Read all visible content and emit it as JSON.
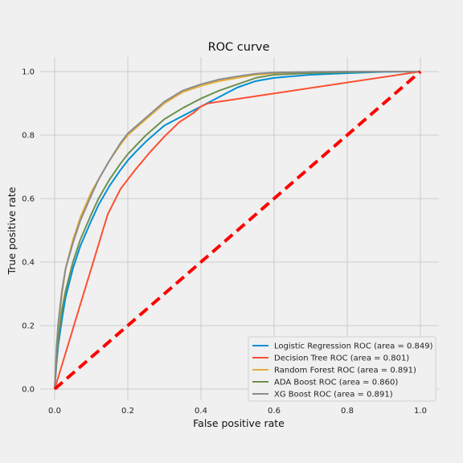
{
  "chart_data": {
    "type": "line",
    "title": "ROC curve",
    "xlabel": "False positive rate",
    "ylabel": "True positive rate",
    "xlim": [
      0.0,
      1.0
    ],
    "ylim": [
      0.0,
      1.0
    ],
    "xticks": [
      "0.0",
      "0.2",
      "0.4",
      "0.6",
      "0.8",
      "1.0"
    ],
    "yticks": [
      "0.0",
      "0.2",
      "0.4",
      "0.6",
      "0.8",
      "1.0"
    ],
    "grid": true,
    "legend_position": "lower-right",
    "series": [
      {
        "name": "Logistic Regression ROC (area = 0.849)",
        "color": "#008fd5",
        "x": [
          0,
          0.005,
          0.01,
          0.02,
          0.03,
          0.05,
          0.07,
          0.1,
          0.12,
          0.15,
          0.18,
          0.2,
          0.22,
          0.25,
          0.28,
          0.3,
          0.35,
          0.4,
          0.45,
          0.5,
          0.55,
          0.6,
          0.65,
          0.7,
          0.8,
          0.9,
          1.0
        ],
        "y": [
          0,
          0.08,
          0.14,
          0.22,
          0.29,
          0.38,
          0.45,
          0.53,
          0.58,
          0.64,
          0.69,
          0.72,
          0.745,
          0.78,
          0.81,
          0.83,
          0.86,
          0.89,
          0.92,
          0.95,
          0.97,
          0.98,
          0.985,
          0.99,
          0.995,
          0.999,
          1.0
        ]
      },
      {
        "name": "Decision Tree ROC (area = 0.801)",
        "color": "#fc4f30",
        "x": [
          0,
          0.145,
          0.18,
          0.22,
          0.26,
          0.3,
          0.34,
          0.38,
          0.4,
          0.42,
          1.0
        ],
        "y": [
          0,
          0.55,
          0.63,
          0.69,
          0.745,
          0.795,
          0.84,
          0.87,
          0.89,
          0.9,
          1.0
        ]
      },
      {
        "name": "Random Forest ROC (area = 0.891)",
        "color": "#e5ae38",
        "x": [
          0,
          0.005,
          0.01,
          0.02,
          0.03,
          0.05,
          0.07,
          0.1,
          0.12,
          0.15,
          0.18,
          0.2,
          0.25,
          0.3,
          0.35,
          0.4,
          0.45,
          0.5,
          0.55,
          0.6,
          0.7,
          0.8,
          0.9,
          1.0
        ],
        "y": [
          0,
          0.12,
          0.2,
          0.3,
          0.38,
          0.47,
          0.54,
          0.62,
          0.66,
          0.72,
          0.77,
          0.8,
          0.85,
          0.9,
          0.935,
          0.955,
          0.97,
          0.98,
          0.99,
          0.995,
          0.998,
          0.999,
          1.0,
          1.0
        ]
      },
      {
        "name": "ADA Boost ROC (area = 0.860)",
        "color": "#6d904f",
        "x": [
          0,
          0.005,
          0.01,
          0.02,
          0.03,
          0.05,
          0.07,
          0.1,
          0.12,
          0.15,
          0.18,
          0.2,
          0.25,
          0.3,
          0.35,
          0.4,
          0.45,
          0.5,
          0.55,
          0.6,
          0.7,
          0.8,
          0.9,
          1.0
        ],
        "y": [
          0,
          0.09,
          0.16,
          0.25,
          0.31,
          0.4,
          0.47,
          0.55,
          0.6,
          0.66,
          0.71,
          0.74,
          0.8,
          0.85,
          0.885,
          0.915,
          0.94,
          0.96,
          0.98,
          0.99,
          0.995,
          0.998,
          1.0,
          1.0
        ]
      },
      {
        "name": "XG Boost ROC (area = 0.891)",
        "color": "#8b8b8b",
        "x": [
          0,
          0.005,
          0.01,
          0.02,
          0.03,
          0.05,
          0.07,
          0.1,
          0.12,
          0.15,
          0.18,
          0.2,
          0.25,
          0.3,
          0.35,
          0.4,
          0.45,
          0.5,
          0.55,
          0.6,
          0.7,
          0.8,
          0.9,
          1.0
        ],
        "y": [
          0,
          0.13,
          0.21,
          0.31,
          0.38,
          0.46,
          0.53,
          0.61,
          0.66,
          0.72,
          0.775,
          0.805,
          0.855,
          0.905,
          0.94,
          0.96,
          0.975,
          0.985,
          0.993,
          0.997,
          0.999,
          1.0,
          1.0,
          1.0
        ]
      },
      {
        "name": "",
        "color": "#ff0000",
        "dashed": true,
        "x": [
          0,
          1
        ],
        "y": [
          0,
          1
        ]
      }
    ]
  }
}
